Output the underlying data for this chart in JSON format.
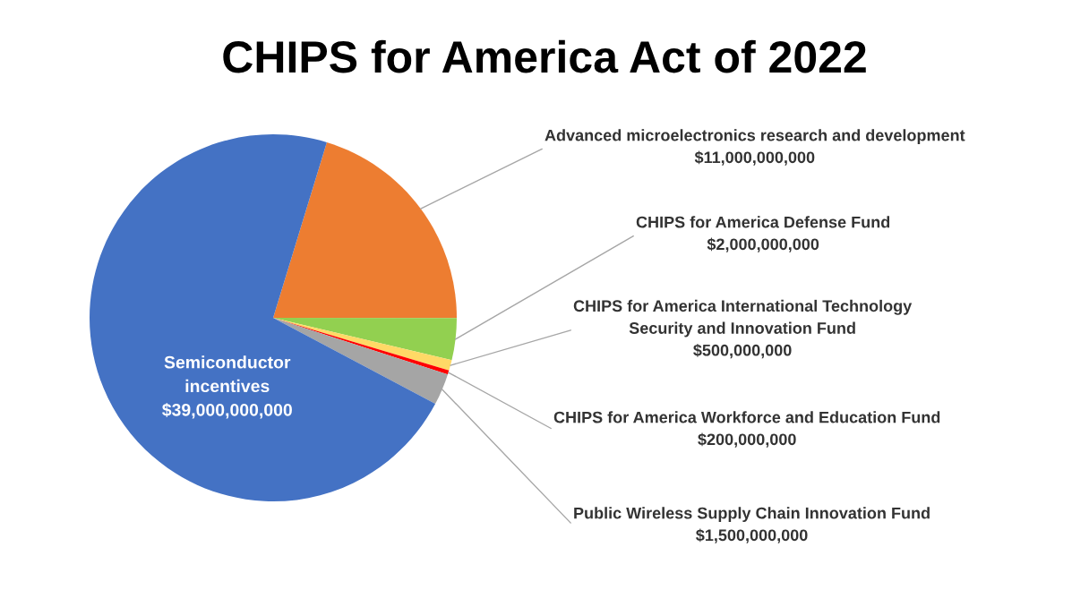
{
  "chart_data": {
    "type": "pie",
    "title": "CHIPS for America Act of 2022",
    "categories": [
      "Advanced microelectronics research and development",
      "CHIPS for America Defense Fund",
      "CHIPS for America International Technology\nSecurity and Innovation Fund",
      "CHIPS for America Workforce and Education Fund",
      "Public Wireless Supply Chain Innovation Fund",
      "Semiconductor\nincentives"
    ],
    "values": [
      11000000000,
      2000000000,
      500000000,
      200000000,
      1500000000,
      39000000000
    ],
    "value_labels": [
      "$11,000,000,000",
      "$2,000,000,000",
      "$500,000,000",
      "$200,000,000",
      "$1,500,000,000",
      "$39,000,000,000"
    ],
    "colors": [
      "#ed7d31",
      "#92d050",
      "#ffd966",
      "#ff0000",
      "#a5a5a5",
      "#4472c4"
    ]
  }
}
